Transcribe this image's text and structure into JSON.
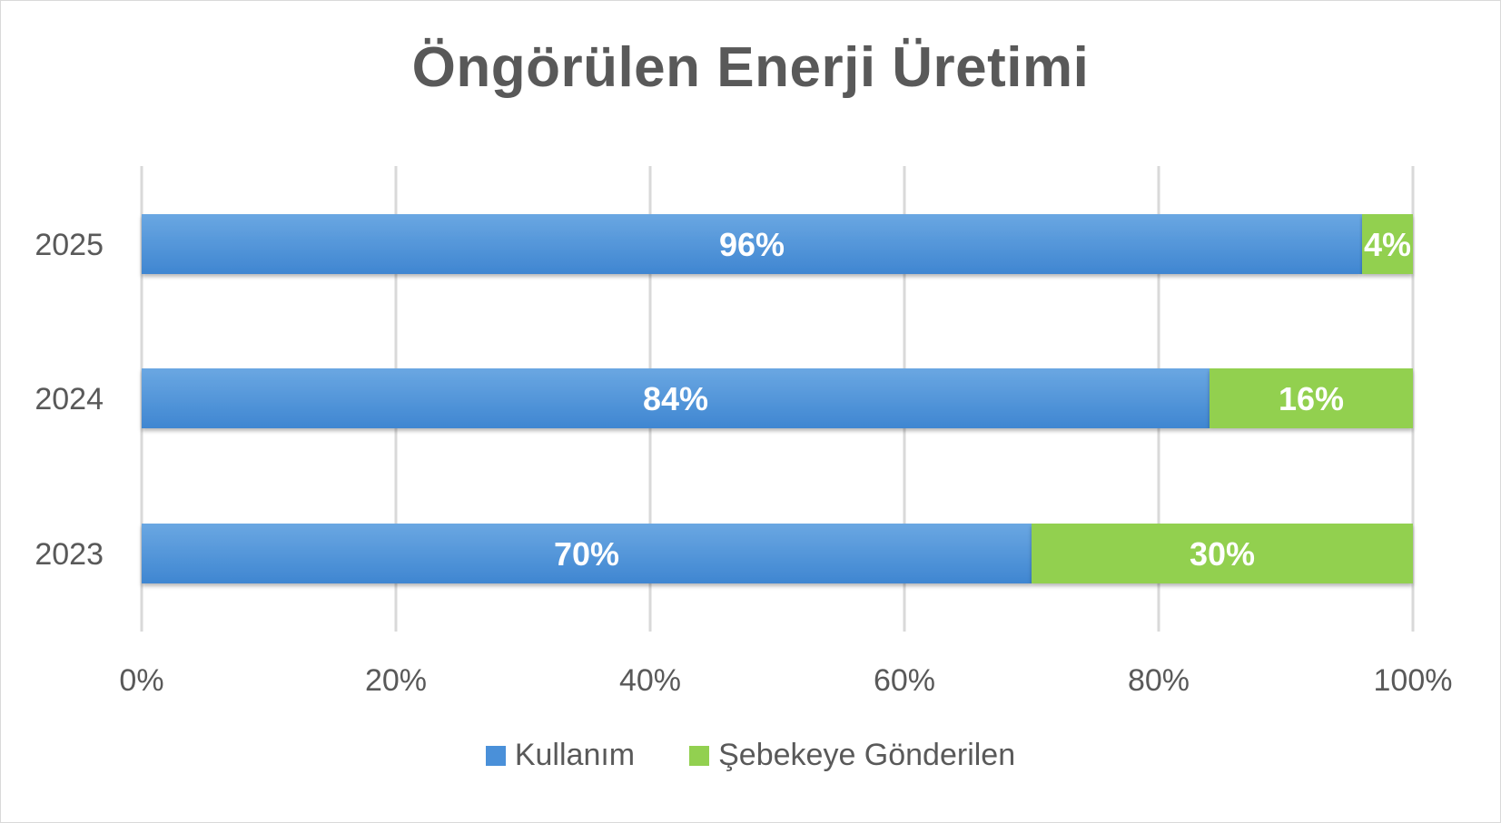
{
  "chart_data": {
    "type": "bar",
    "orientation": "horizontal",
    "stacked": "percent",
    "title": "Öngörülen Enerji Üretimi",
    "categories": [
      "2025",
      "2024",
      "2023"
    ],
    "series": [
      {
        "name": "Kullanım",
        "color": "#4a90d9",
        "values": [
          96,
          84,
          70
        ],
        "labels": [
          "96%",
          "84%",
          "70%"
        ]
      },
      {
        "name": "Şebekeye Gönderilen",
        "color": "#92d050",
        "values": [
          4,
          16,
          30
        ],
        "labels": [
          "4%",
          "16%",
          "30%"
        ]
      }
    ],
    "xlim": [
      0,
      100
    ],
    "xticks": [
      0,
      20,
      40,
      60,
      80,
      100
    ],
    "xtick_labels": [
      "0%",
      "20%",
      "40%",
      "60%",
      "80%",
      "100%"
    ],
    "grid": "vertical",
    "legend": "bottom"
  }
}
